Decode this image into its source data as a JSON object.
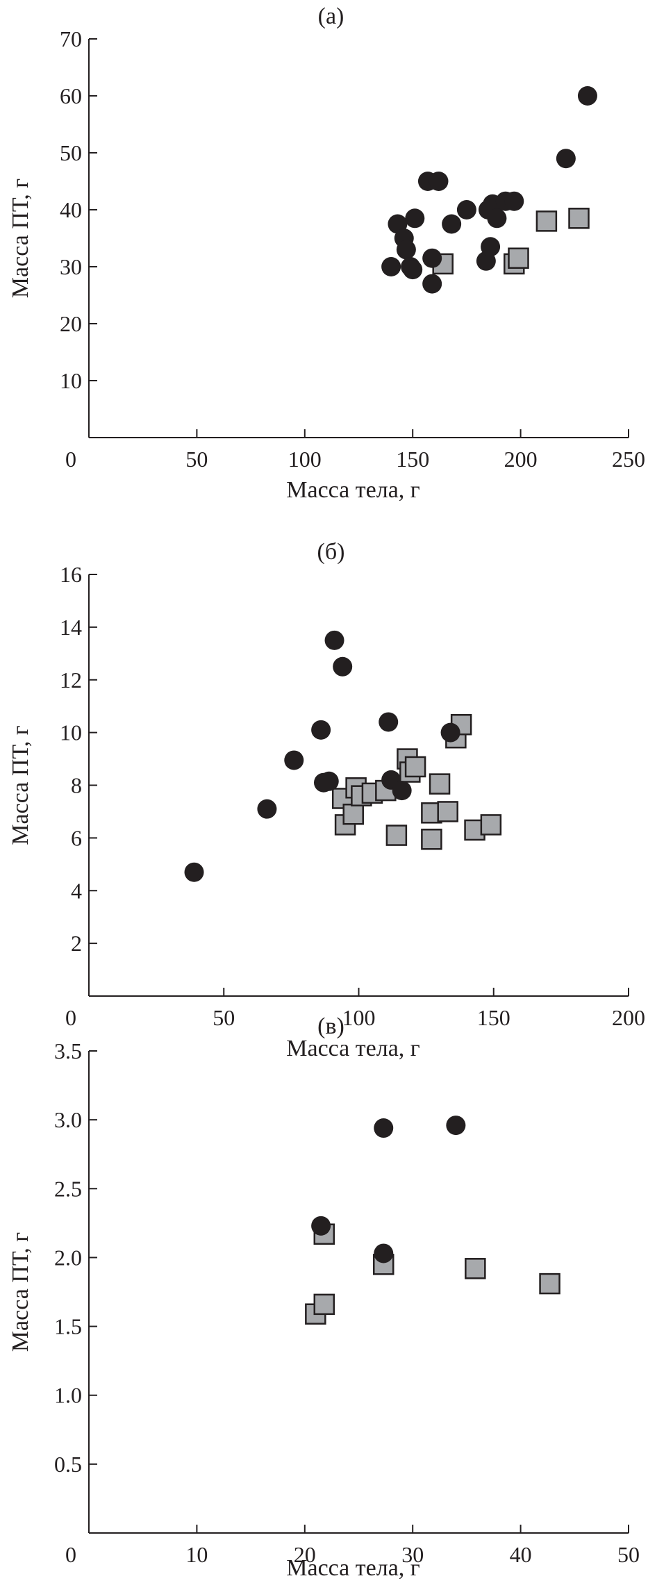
{
  "colors": {
    "circle_fill": "#231f20",
    "square_fill": "#a7a9ac",
    "square_stroke": "#231f20",
    "axis": "#231f20"
  },
  "chart_data": [
    {
      "type": "scatter",
      "title": "(а)",
      "xlabel": "Масса тела, г",
      "ylabel": "Масса ПТ, г",
      "xlim": [
        0,
        250
      ],
      "ylim": [
        0,
        70
      ],
      "x_ticks": [
        0,
        50,
        100,
        150,
        200,
        250
      ],
      "y_ticks": [
        10,
        20,
        30,
        40,
        50,
        60,
        70
      ],
      "grid": false,
      "series": [
        {
          "marker": "circle",
          "points": [
            [
              140,
              30
            ],
            [
              143,
              37.5
            ],
            [
              146,
              35
            ],
            [
              147,
              33
            ],
            [
              149,
              30
            ],
            [
              150,
              29.5
            ],
            [
              151,
              38.5
            ],
            [
              157,
              45
            ],
            [
              159,
              31.5
            ],
            [
              159,
              27
            ],
            [
              162,
              45
            ],
            [
              168,
              37.5
            ],
            [
              175,
              40
            ],
            [
              185,
              40
            ],
            [
              187,
              41
            ],
            [
              184,
              31
            ],
            [
              186,
              33.5
            ],
            [
              189,
              38.5
            ],
            [
              193,
              41.5
            ],
            [
              197,
              41.5
            ],
            [
              221,
              49
            ],
            [
              231,
              60
            ]
          ]
        },
        {
          "marker": "square",
          "points": [
            [
              164,
              30.5
            ],
            [
              197,
              30.5
            ],
            [
              199,
              31.5
            ],
            [
              212,
              38
            ],
            [
              227,
              38.5
            ]
          ]
        }
      ]
    },
    {
      "type": "scatter",
      "title": "(б)",
      "xlabel": "Масса тела, г",
      "ylabel": "Масса ПТ, г",
      "xlim": [
        0,
        200
      ],
      "ylim": [
        0,
        16
      ],
      "x_ticks": [
        0,
        50,
        100,
        150,
        200
      ],
      "y_ticks": [
        2,
        4,
        6,
        8,
        10,
        12,
        14,
        16
      ],
      "grid": false,
      "series": [
        {
          "marker": "circle",
          "points": [
            [
              39,
              4.7
            ],
            [
              66,
              7.1
            ],
            [
              76,
              8.95
            ],
            [
              86,
              10.1
            ],
            [
              87,
              8.1
            ],
            [
              89,
              8.15
            ],
            [
              91,
              13.5
            ],
            [
              94,
              12.5
            ],
            [
              111,
              10.4
            ],
            [
              112,
              8.2
            ],
            [
              116,
              7.8
            ],
            [
              134,
              10
            ]
          ]
        },
        {
          "marker": "square",
          "points": [
            [
              94,
              7.5
            ],
            [
              95,
              6.5
            ],
            [
              98,
              6.9
            ],
            [
              99,
              7.9
            ],
            [
              101,
              7.6
            ],
            [
              105,
              7.7
            ],
            [
              110,
              7.8
            ],
            [
              114,
              6.1
            ],
            [
              118,
              9
            ],
            [
              119,
              8.5
            ],
            [
              121,
              8.7
            ],
            [
              127,
              6.95
            ],
            [
              127,
              5.95
            ],
            [
              130,
              8.05
            ],
            [
              133,
              7
            ],
            [
              136,
              9.8
            ],
            [
              138,
              10.3
            ],
            [
              143,
              6.3
            ],
            [
              149,
              6.5
            ]
          ]
        }
      ]
    },
    {
      "type": "scatter",
      "title": "(в)",
      "xlabel": "Масса тела, г",
      "ylabel": "Масса ПТ, г",
      "xlim": [
        0,
        50
      ],
      "ylim": [
        0,
        3.5
      ],
      "x_ticks": [
        0,
        10,
        20,
        30,
        40,
        50
      ],
      "y_ticks": [
        0.5,
        1.0,
        1.5,
        2.0,
        2.5,
        3.0,
        3.5
      ],
      "y_tick_labels": [
        "0.5",
        "1.0",
        "1.5",
        "2.0",
        "2.5",
        "3.0",
        "3.5"
      ],
      "grid": false,
      "series": [
        {
          "marker": "circle",
          "points": [
            [
              21.5,
              2.23
            ],
            [
              27.3,
              2.03
            ],
            [
              27.3,
              2.94
            ],
            [
              34,
              2.96
            ]
          ]
        },
        {
          "marker": "square",
          "points": [
            [
              21,
              1.59
            ],
            [
              21.8,
              1.66
            ],
            [
              21.8,
              2.17
            ],
            [
              27.3,
              1.95
            ],
            [
              35.8,
              1.92
            ],
            [
              42.7,
              1.81
            ]
          ]
        }
      ]
    }
  ]
}
